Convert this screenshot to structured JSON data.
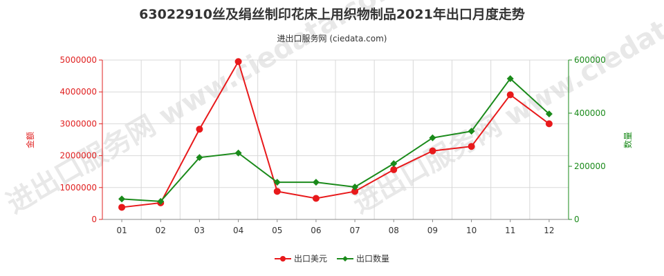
{
  "chart_data": {
    "type": "line",
    "title": "63022910丝及绢丝制印花床上用织物制品2021年出口月度走势",
    "subtitle": "进出口服务网 (ciedata.com)",
    "categories": [
      "01",
      "02",
      "03",
      "04",
      "05",
      "06",
      "07",
      "08",
      "09",
      "10",
      "11",
      "12"
    ],
    "ylabel_left": "金额",
    "ylabel_right": "数量",
    "ylim_left": [
      0,
      5000000
    ],
    "ylim_right": [
      0,
      600000
    ],
    "yticks_left": [
      "0",
      "1000000",
      "2000000",
      "3000000",
      "4000000",
      "5000000"
    ],
    "yticks_right": [
      "0",
      "200000",
      "400000",
      "600000"
    ],
    "grid": true,
    "legend_position": "bottom-center",
    "watermark": "进出口服务网 www.ciedata.com",
    "series": [
      {
        "name": "出口美元",
        "axis": "left",
        "color": "#e8191b",
        "marker": "circle",
        "values": [
          380000,
          520000,
          2830000,
          4950000,
          880000,
          660000,
          880000,
          1560000,
          2150000,
          2290000,
          3910000,
          3000000
        ]
      },
      {
        "name": "出口数量",
        "axis": "right",
        "color": "#1a8a1a",
        "marker": "diamond",
        "values": [
          77000,
          68000,
          233000,
          250000,
          140000,
          140000,
          122000,
          210000,
          307000,
          332000,
          530000,
          397000
        ]
      }
    ]
  }
}
